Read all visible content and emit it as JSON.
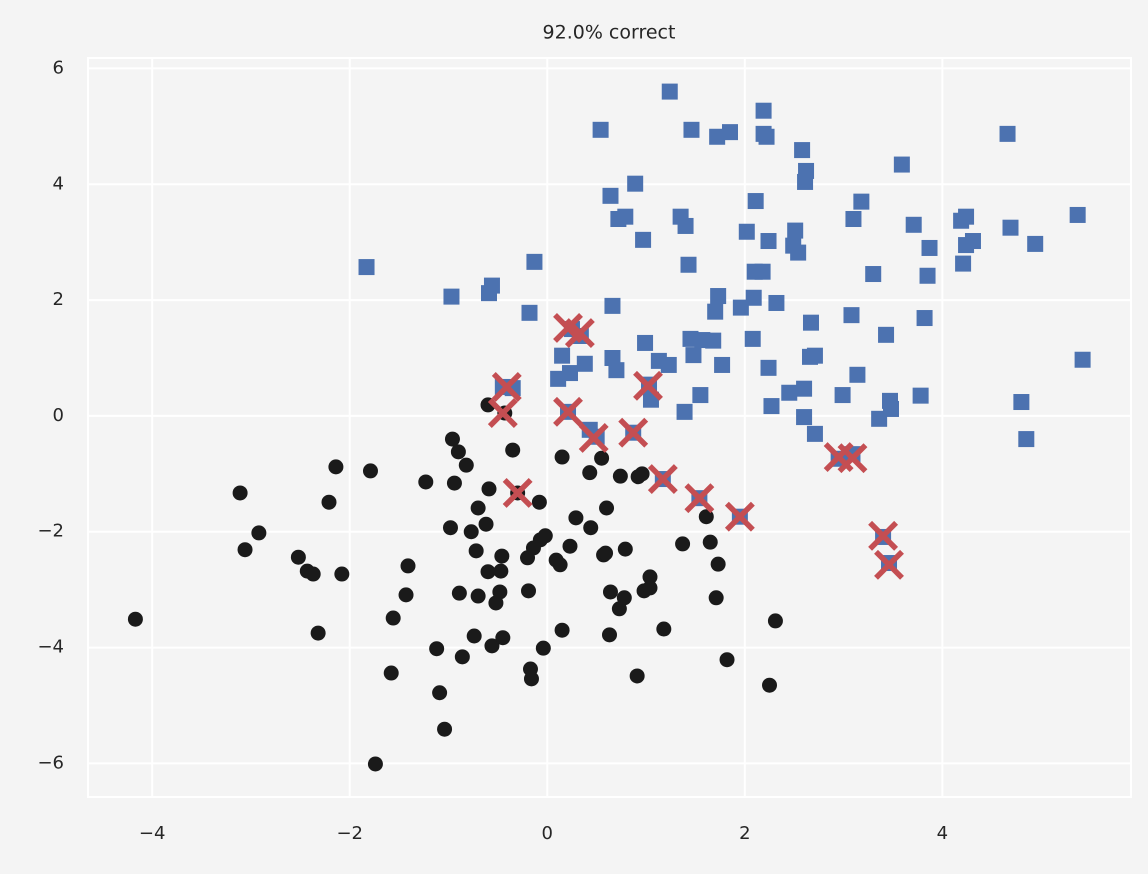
{
  "chart_data": {
    "type": "scatter",
    "title": "92.0% correct",
    "xlim": [
      -4.65,
      5.91
    ],
    "ylim": [
      -6.58,
      6.18
    ],
    "xticks": [
      {
        "value": -4,
        "label": "−4"
      },
      {
        "value": -2,
        "label": "−2"
      },
      0,
      2,
      4
    ],
    "yticks": [
      {
        "value": -6,
        "label": "−6"
      },
      {
        "value": -4,
        "label": "−4"
      },
      {
        "value": -2,
        "label": "−2"
      },
      0,
      2,
      4,
      6
    ],
    "grid": true,
    "series": [
      {
        "marker": "o",
        "color": "#1a1a1a",
        "x": [
          -4.17,
          -3.11,
          -3.06,
          -2.92,
          -2.52,
          -2.43,
          -2.37,
          -2.32,
          -2.08,
          -2.21,
          -2.14,
          -1.79,
          -1.74,
          -1.58,
          -1.56,
          -1.43,
          -1.41,
          -1.23,
          -1.12,
          -1.09,
          -1.04,
          -0.98,
          -0.96,
          -0.94,
          -0.9,
          -0.89,
          -0.86,
          -0.82,
          -0.77,
          -0.74,
          -0.72,
          -0.7,
          -0.7,
          -0.62,
          -0.6,
          -0.59,
          -0.6,
          -0.56,
          -0.52,
          -0.48,
          -0.47,
          -0.46,
          -0.45,
          -0.43,
          -0.35,
          -0.3,
          -0.2,
          -0.19,
          -0.17,
          -0.16,
          -0.14,
          -0.08,
          -0.07,
          -0.04,
          -0.02,
          0.09,
          0.13,
          0.15,
          0.15,
          0.23,
          0.29,
          0.43,
          0.44,
          0.55,
          0.57,
          0.59,
          0.6,
          0.63,
          0.64,
          0.73,
          0.74,
          0.78,
          0.79,
          0.91,
          0.92,
          0.96,
          0.98,
          1.04,
          1.04,
          1.18,
          1.37,
          1.61,
          1.65,
          1.71,
          1.73,
          1.82,
          2.25,
          2.31
        ],
        "values": [
          -3.51,
          -1.33,
          -2.31,
          -2.02,
          -2.44,
          -2.68,
          -2.73,
          -3.75,
          -2.73,
          -1.49,
          -0.88,
          -0.95,
          -6.01,
          -4.44,
          -3.49,
          -3.09,
          -2.59,
          -1.14,
          -4.02,
          -4.78,
          -5.41,
          -1.93,
          -0.4,
          -1.16,
          -0.62,
          -3.06,
          -4.16,
          -0.85,
          -2.0,
          -3.8,
          -2.33,
          -3.11,
          -1.59,
          -1.87,
          0.19,
          -1.26,
          -2.69,
          -3.97,
          -3.23,
          -3.04,
          -2.68,
          -2.42,
          -3.83,
          0.05,
          -0.59,
          -1.33,
          -2.45,
          -3.02,
          -4.37,
          -4.54,
          -2.28,
          -1.49,
          -2.14,
          -4.01,
          -2.07,
          -2.49,
          -2.57,
          -0.71,
          -3.7,
          -2.25,
          -1.76,
          -0.98,
          -1.93,
          -0.73,
          -2.4,
          -2.37,
          -1.59,
          -3.78,
          -3.04,
          -3.33,
          -1.04,
          -3.14,
          -2.3,
          -4.49,
          -1.05,
          -1.0,
          -3.02,
          -2.78,
          -2.97,
          -3.68,
          -2.21,
          -1.74,
          -2.18,
          -3.14,
          -2.56,
          -4.21,
          -4.65,
          -3.54
        ]
      },
      {
        "marker": "s",
        "color": "#4c72b0",
        "x": [
          -1.83,
          -0.97,
          -0.59,
          -0.56,
          -0.18,
          -0.13,
          0.11,
          0.15,
          0.23,
          0.25,
          0.34,
          0.38,
          0.54,
          0.64,
          0.66,
          0.66,
          0.7,
          0.72,
          0.79,
          0.89,
          0.97,
          0.99,
          1.05,
          1.13,
          1.23,
          1.24,
          1.35,
          1.4,
          1.39,
          1.43,
          1.46,
          1.45,
          1.48,
          1.55,
          1.57,
          1.68,
          1.7,
          1.73,
          1.72,
          1.77,
          1.85,
          1.96,
          2.02,
          2.08,
          2.09,
          2.1,
          2.11,
          2.18,
          2.19,
          2.19,
          2.22,
          2.24,
          2.24,
          2.27,
          2.32,
          2.45,
          2.49,
          2.51,
          2.54,
          2.58,
          2.6,
          2.6,
          2.61,
          2.62,
          2.66,
          2.67,
          2.71,
          2.71,
          2.99,
          3.08,
          3.1,
          3.14,
          3.18,
          3.3,
          3.36,
          3.43,
          3.47,
          3.48,
          3.59,
          3.71,
          3.78,
          3.82,
          3.85,
          3.87,
          4.19,
          4.21,
          4.24,
          4.24,
          4.31,
          4.66,
          4.69,
          4.8,
          4.85,
          4.94,
          5.37,
          5.42,
          -0.45,
          -0.35,
          0.21,
          0.43,
          0.5,
          0.87,
          1.03,
          1.17,
          1.54,
          1.95,
          2.95,
          3.09,
          3.4,
          3.46
        ],
        "values": [
          2.57,
          2.06,
          2.12,
          2.25,
          1.78,
          2.66,
          0.64,
          1.04,
          0.74,
          1.5,
          1.38,
          0.9,
          4.94,
          3.8,
          1.9,
          1.0,
          0.79,
          3.4,
          3.44,
          4.01,
          3.04,
          1.26,
          0.28,
          0.95,
          0.88,
          5.6,
          3.44,
          3.28,
          0.07,
          2.61,
          4.94,
          1.33,
          1.05,
          0.36,
          1.31,
          1.3,
          1.8,
          2.07,
          4.82,
          0.88,
          4.9,
          1.87,
          3.18,
          1.33,
          2.04,
          2.49,
          3.71,
          2.49,
          5.27,
          4.87,
          4.82,
          3.02,
          0.83,
          0.17,
          1.95,
          0.4,
          2.94,
          3.2,
          2.82,
          4.59,
          0.47,
          -0.02,
          4.04,
          4.23,
          1.02,
          1.61,
          1.04,
          -0.31,
          0.36,
          1.74,
          3.4,
          0.71,
          3.7,
          2.45,
          -0.05,
          1.4,
          0.26,
          0.12,
          4.34,
          3.3,
          0.35,
          1.69,
          2.42,
          2.9,
          3.37,
          2.63,
          3.44,
          2.95,
          3.02,
          4.87,
          3.25,
          0.24,
          -0.4,
          2.97,
          3.47,
          0.97,
          0.5,
          0.48,
          0.07,
          -0.24,
          -0.36,
          -0.29,
          0.54,
          -1.09,
          -1.42,
          -1.74,
          -0.74,
          -0.66,
          -2.09,
          -2.54
        ]
      },
      {
        "marker": "x",
        "color": "#c44e52",
        "x": [
          -0.41,
          -0.45,
          -0.3,
          0.21,
          0.33,
          0.21,
          0.47,
          0.87,
          1.02,
          1.17,
          1.54,
          1.95,
          2.95,
          3.09,
          3.4,
          3.46
        ],
        "values": [
          0.5,
          0.05,
          -1.33,
          0.07,
          1.43,
          1.52,
          -0.38,
          -0.29,
          0.52,
          -1.09,
          -1.42,
          -1.74,
          -0.71,
          -0.73,
          -2.07,
          -2.57
        ]
      }
    ]
  }
}
